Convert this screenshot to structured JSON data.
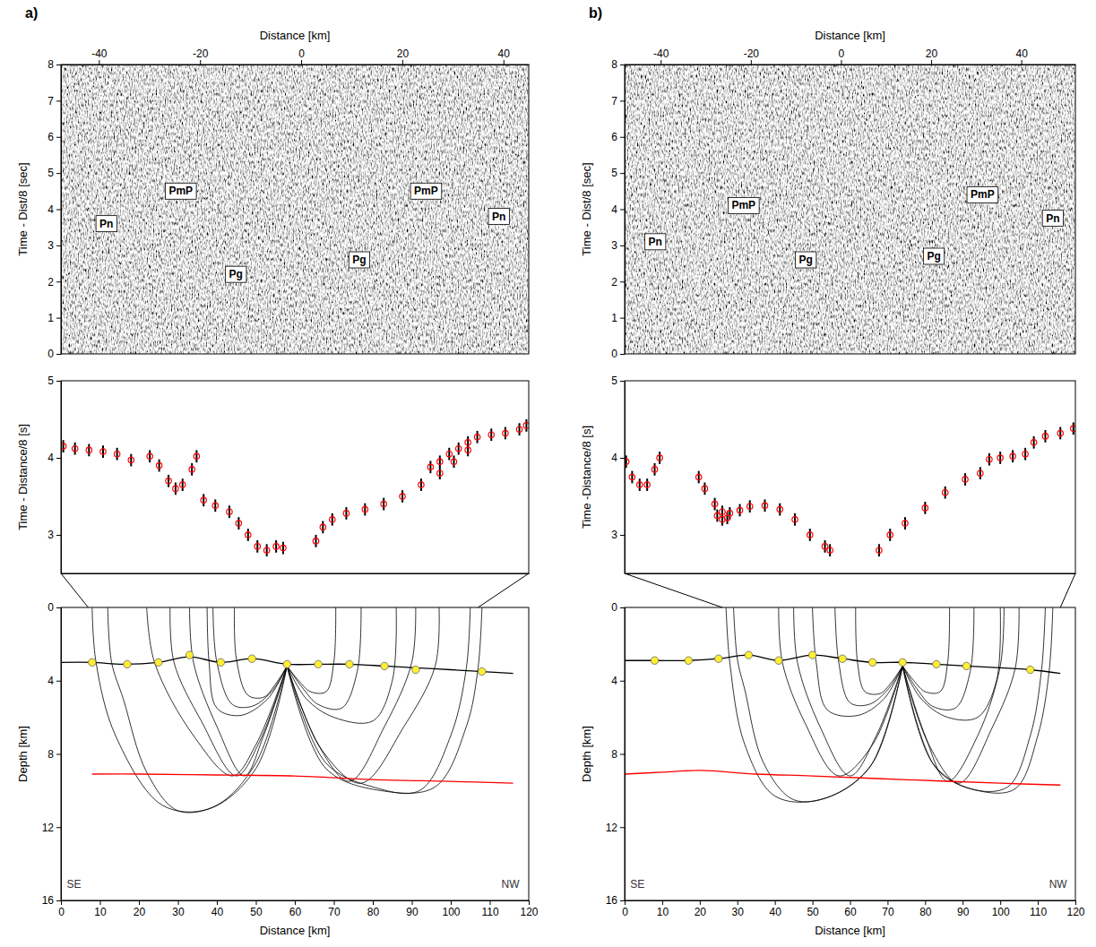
{
  "chart_data": [
    {
      "type": "record_section",
      "title": "a)",
      "xlabel": "Distance [km]",
      "ylabel": "Time - Dist/8 [sec]",
      "xlim": [
        -47.5,
        45
      ],
      "xticks": [
        -40,
        -20,
        0,
        20,
        40
      ],
      "ylim": [
        0,
        8
      ],
      "yticks": [
        0,
        1,
        2,
        3,
        4,
        5,
        6,
        7,
        8
      ],
      "annotations": [
        {
          "text": "Pn",
          "x": -38.5,
          "y": 3.6
        },
        {
          "text": "PmP",
          "x": -23.8,
          "y": 4.5
        },
        {
          "text": "Pg",
          "x": -12.9,
          "y": 2.2
        },
        {
          "text": "Pg",
          "x": 11.5,
          "y": 2.6
        },
        {
          "text": "PmP",
          "x": 24.7,
          "y": 4.5
        },
        {
          "text": "Pn",
          "x": 39.1,
          "y": 3.8
        }
      ]
    },
    {
      "type": "scatter",
      "ylabel": "Time - Distance/8 [s]",
      "xlim": [
        7,
        107
      ],
      "ylim": [
        2.5,
        5
      ],
      "yticks": [
        3,
        4,
        5
      ],
      "tick_labels": "y",
      "color": "#ff0000",
      "marker": "circle",
      "error": 0.08,
      "x": [
        7.5,
        10,
        13,
        16,
        19,
        22,
        26,
        28,
        30,
        31.5,
        33,
        35,
        36,
        37.5,
        40,
        43,
        45,
        47,
        49,
        51,
        53,
        54.5,
        61.5,
        63,
        65,
        68,
        72,
        76,
        80,
        84,
        88,
        91,
        94,
        86,
        88,
        90,
        92,
        94,
        96,
        99,
        102,
        105,
        106.5
      ],
      "values": [
        4.15,
        4.12,
        4.1,
        4.08,
        4.05,
        3.97,
        4.02,
        3.9,
        3.7,
        3.6,
        3.65,
        3.85,
        4.02,
        3.45,
        3.38,
        3.3,
        3.15,
        3,
        2.85,
        2.8,
        2.85,
        2.83,
        2.92,
        3.1,
        3.2,
        3.28,
        3.33,
        3.4,
        3.5,
        3.65,
        3.8,
        3.95,
        4.1,
        3.88,
        3.95,
        4.05,
        4.12,
        4.2,
        4.27,
        4.3,
        4.32,
        4.37,
        4.42
      ]
    },
    {
      "type": "ray_diagram",
      "xlabel": "Distance [km]",
      "ylabel": "Depth [km]",
      "xlim": [
        0,
        120
      ],
      "xticks": [
        0,
        10,
        20,
        30,
        40,
        50,
        60,
        70,
        80,
        90,
        100,
        110,
        120
      ],
      "ylim": [
        16,
        0
      ],
      "yticks": [
        0,
        4,
        8,
        12,
        16
      ],
      "annotations": [
        {
          "text": "SE",
          "x": 1.5,
          "y": 15.3
        },
        {
          "text": "NW",
          "x": 113,
          "y": 15.3
        }
      ],
      "series": [
        {
          "type": "line",
          "color": "#000000",
          "x": [
            58,
            54,
            49,
            44,
            40,
            39
          ],
          "values": [
            3.2,
            4.6,
            5.4,
            5.3,
            3,
            0
          ]
        },
        {
          "type": "line",
          "color": "#000000",
          "x": [
            58,
            55,
            52,
            48,
            45,
            44.5
          ],
          "values": [
            3.2,
            4.2,
            4.9,
            4.8,
            2.8,
            0
          ]
        },
        {
          "type": "line",
          "color": "#000000",
          "x": [
            58,
            53,
            46,
            40,
            38,
            37.5
          ],
          "values": [
            3.2,
            5,
            5.9,
            5.5,
            3,
            0
          ]
        },
        {
          "type": "line",
          "color": "#000000",
          "x": [
            58,
            52,
            47,
            40,
            34,
            33
          ],
          "values": [
            3.2,
            7,
            9.2,
            6.5,
            3,
            0
          ]
        },
        {
          "type": "line",
          "color": "#000000",
          "x": [
            58,
            51,
            45,
            36,
            29,
            28
          ],
          "values": [
            3.2,
            7.3,
            9.2,
            6.2,
            3,
            0
          ]
        },
        {
          "type": "line",
          "color": "#000000",
          "x": [
            58,
            50,
            44,
            34,
            24,
            22
          ],
          "values": [
            3.2,
            7.5,
            9.2,
            7,
            3,
            0
          ]
        },
        {
          "type": "line",
          "color": "#000000",
          "x": [
            58,
            50,
            40,
            30,
            22,
            16,
            13,
            12
          ],
          "values": [
            3.2,
            8.5,
            10.8,
            11.1,
            9,
            5,
            3,
            0
          ]
        },
        {
          "type": "line",
          "color": "#000000",
          "x": [
            58,
            50,
            38,
            26,
            14,
            9,
            8
          ],
          "values": [
            3.2,
            8.8,
            11,
            10.8,
            7,
            3,
            0
          ]
        },
        {
          "type": "line",
          "color": "#000000",
          "x": [
            58,
            61,
            64,
            68,
            70,
            70.5
          ],
          "values": [
            3.2,
            4,
            4.6,
            4.6,
            3,
            0
          ]
        },
        {
          "type": "line",
          "color": "#000000",
          "x": [
            58,
            62,
            66,
            72,
            76,
            77
          ],
          "values": [
            3.2,
            4.4,
            5.3,
            5.5,
            3.5,
            0
          ]
        },
        {
          "type": "line",
          "color": "#000000",
          "x": [
            58,
            63,
            70,
            80,
            85,
            86
          ],
          "values": [
            3.2,
            5,
            6,
            6.2,
            4,
            0
          ]
        },
        {
          "type": "line",
          "color": "#000000",
          "x": [
            58,
            66,
            74,
            83,
            90,
            91
          ],
          "values": [
            3.2,
            7.5,
            9.5,
            6.5,
            3,
            0
          ]
        },
        {
          "type": "line",
          "color": "#000000",
          "x": [
            58,
            67,
            77,
            88,
            96,
            97
          ],
          "values": [
            3.2,
            7.8,
            9.6,
            6.5,
            3.2,
            0
          ]
        },
        {
          "type": "line",
          "color": "#000000",
          "x": [
            58,
            68,
            80,
            92,
            100,
            104,
            105
          ],
          "values": [
            3.2,
            8.5,
            9.8,
            10,
            7,
            3.3,
            0
          ]
        },
        {
          "type": "line",
          "color": "#000000",
          "x": [
            58,
            68,
            82,
            96,
            104,
            107,
            108
          ],
          "values": [
            3.2,
            8.8,
            10,
            9.8,
            6.5,
            3.3,
            0
          ]
        },
        {
          "type": "line",
          "color": "#000000",
          "x": [
            0,
            8,
            16,
            25,
            33,
            41,
            49,
            58,
            66,
            74,
            83,
            91,
            100,
            108,
            116
          ],
          "values": [
            3,
            3,
            3.1,
            3,
            2.7,
            3,
            2.8,
            3.1,
            3.1,
            3.1,
            3.2,
            3.3,
            3.4,
            3.5,
            3.6
          ]
        },
        {
          "type": "line",
          "color": "#ff0000",
          "x": [
            8,
            20,
            40,
            60,
            80,
            100,
            116
          ],
          "values": [
            9.1,
            9.1,
            9.15,
            9.2,
            9.4,
            9.5,
            9.6
          ]
        },
        {
          "type": "scatter",
          "color": "#ffee33",
          "marker": "circle",
          "x": [
            8,
            17,
            25,
            33,
            41,
            49,
            58,
            66,
            74,
            83,
            91,
            108
          ],
          "values": [
            3,
            3.1,
            3,
            2.6,
            3,
            2.8,
            3.1,
            3.1,
            3.1,
            3.2,
            3.4,
            3.5
          ]
        }
      ]
    },
    {
      "type": "record_section",
      "title": "b)",
      "xlabel": "Distance [km]",
      "ylabel": "Time - Dist/8 [sec]",
      "xlim": [
        -48,
        52
      ],
      "xticks": [
        -40,
        -20,
        0,
        20,
        40
      ],
      "ylim": [
        0,
        8
      ],
      "yticks": [
        0,
        1,
        2,
        3,
        4,
        5,
        6,
        7,
        8
      ],
      "annotations": [
        {
          "text": "Pn",
          "x": -41.2,
          "y": 3.1
        },
        {
          "text": "PmP",
          "x": -21.6,
          "y": 4.1
        },
        {
          "text": "Pg",
          "x": -7.8,
          "y": 2.6
        },
        {
          "text": "Pg",
          "x": 20.6,
          "y": 2.7
        },
        {
          "text": "PmP",
          "x": 31.4,
          "y": 4.4
        },
        {
          "text": "Pn",
          "x": 47,
          "y": 3.75
        }
      ]
    },
    {
      "type": "scatter",
      "ylabel": "Time -Distance/8 [s]",
      "xlim": [
        26,
        116
      ],
      "ylim": [
        2.5,
        5
      ],
      "yticks": [
        3,
        4,
        5
      ],
      "tick_labels": "y",
      "color": "#ff0000",
      "marker": "circle",
      "error": 0.08,
      "x": [
        26.3,
        27.5,
        29,
        30.5,
        32,
        33,
        40.8,
        42,
        44,
        45.5,
        47,
        49,
        51,
        54,
        57,
        60,
        63,
        66,
        67,
        44.5,
        45.5,
        46.5,
        76.8,
        79,
        82,
        86,
        90,
        94,
        97,
        98.8,
        101,
        103.5,
        106,
        107.7,
        110,
        113,
        115.6
      ],
      "values": [
        3.95,
        3.75,
        3.65,
        3.65,
        3.85,
        4,
        3.75,
        3.6,
        3.4,
        3.3,
        3.28,
        3.32,
        3.37,
        3.38,
        3.33,
        3.2,
        3,
        2.85,
        2.8,
        3.25,
        3.2,
        3.22,
        2.8,
        3,
        3.15,
        3.35,
        3.55,
        3.72,
        3.8,
        3.98,
        4,
        4.02,
        4.05,
        4.2,
        4.28,
        4.32,
        4.38
      ]
    },
    {
      "type": "ray_diagram",
      "xlabel": "Distance [km]",
      "ylabel": "Depth [km]",
      "xlim": [
        0,
        120
      ],
      "xticks": [
        0,
        10,
        20,
        30,
        40,
        50,
        60,
        70,
        80,
        90,
        100,
        110,
        120
      ],
      "ylim": [
        16,
        0
      ],
      "yticks": [
        0,
        4,
        8,
        12,
        16
      ],
      "annotations": [
        {
          "text": "SE",
          "x": 1.5,
          "y": 15.3
        },
        {
          "text": "NW",
          "x": 113,
          "y": 15.3
        }
      ],
      "series": [
        {
          "type": "line",
          "color": "#000000",
          "x": [
            74,
            70,
            65,
            60,
            57,
            56
          ],
          "values": [
            3.2,
            4.5,
            5.3,
            5.2,
            3,
            0
          ]
        },
        {
          "type": "line",
          "color": "#000000",
          "x": [
            74,
            71,
            68,
            64,
            62,
            61.5
          ],
          "values": [
            3.2,
            4.1,
            4.7,
            4.6,
            3,
            0
          ]
        },
        {
          "type": "line",
          "color": "#000000",
          "x": [
            74,
            69,
            62,
            54,
            51,
            50
          ],
          "values": [
            3.2,
            5,
            5.9,
            5.6,
            3,
            0
          ]
        },
        {
          "type": "line",
          "color": "#000000",
          "x": [
            74,
            67,
            60,
            52,
            46,
            45
          ],
          "values": [
            3.2,
            7,
            9.2,
            6.5,
            3,
            0
          ]
        },
        {
          "type": "line",
          "color": "#000000",
          "x": [
            74,
            66,
            57,
            48,
            42,
            41
          ],
          "values": [
            3.2,
            7.5,
            9.2,
            6.3,
            3,
            0
          ]
        },
        {
          "type": "line",
          "color": "#000000",
          "x": [
            74,
            66,
            55,
            45,
            37,
            32,
            30,
            29
          ],
          "values": [
            3.2,
            8.5,
            10.3,
            10.5,
            8.5,
            4.5,
            2.8,
            0
          ]
        },
        {
          "type": "line",
          "color": "#000000",
          "x": [
            74,
            65,
            52,
            40,
            32,
            28,
            27
          ],
          "values": [
            3.2,
            8.8,
            10.5,
            10.3,
            7.5,
            3,
            0
          ]
        },
        {
          "type": "line",
          "color": "#000000",
          "x": [
            74,
            77,
            80,
            84,
            86,
            86.5
          ],
          "values": [
            3.2,
            4,
            4.6,
            4.6,
            3,
            0
          ]
        },
        {
          "type": "line",
          "color": "#000000",
          "x": [
            74,
            78,
            82,
            88,
            92,
            93
          ],
          "values": [
            3.2,
            4.5,
            5.4,
            5.5,
            3.5,
            0
          ]
        },
        {
          "type": "line",
          "color": "#000000",
          "x": [
            74,
            79,
            86,
            94,
            99,
            100
          ],
          "values": [
            3.2,
            5,
            6,
            6,
            4,
            0
          ]
        },
        {
          "type": "line",
          "color": "#000000",
          "x": [
            74,
            80,
            86,
            94,
            100,
            101
          ],
          "values": [
            3.2,
            7,
            9.5,
            7,
            3.2,
            0
          ]
        },
        {
          "type": "line",
          "color": "#000000",
          "x": [
            74,
            81,
            89,
            98,
            104,
            105
          ],
          "values": [
            3.2,
            7.5,
            9.6,
            6.5,
            3.3,
            0
          ]
        },
        {
          "type": "line",
          "color": "#000000",
          "x": [
            74,
            82,
            92,
            102,
            108,
            111,
            112
          ],
          "values": [
            3.2,
            8.5,
            9.9,
            9.8,
            7,
            3.4,
            0
          ]
        },
        {
          "type": "line",
          "color": "#000000",
          "x": [
            74,
            83,
            94,
            104,
            110,
            113,
            114
          ],
          "values": [
            3.2,
            8.8,
            10,
            9.9,
            7,
            3.5,
            0
          ]
        },
        {
          "type": "line",
          "color": "#000000",
          "x": [
            0,
            8,
            17,
            25,
            33,
            41,
            50,
            58,
            66,
            74,
            83,
            91,
            100,
            108,
            116
          ],
          "values": [
            2.9,
            2.9,
            2.9,
            2.8,
            2.6,
            2.9,
            2.6,
            2.8,
            3,
            3,
            3.1,
            3.2,
            3.3,
            3.4,
            3.6
          ]
        },
        {
          "type": "line",
          "color": "#ff0000",
          "x": [
            0,
            10,
            20,
            35,
            50,
            74,
            100,
            116
          ],
          "values": [
            9.1,
            9,
            8.9,
            9.1,
            9.2,
            9.4,
            9.6,
            9.7
          ]
        },
        {
          "type": "scatter",
          "color": "#ffee33",
          "marker": "circle",
          "x": [
            8,
            17,
            25,
            33,
            41,
            50,
            58,
            66,
            74,
            83,
            91,
            108
          ],
          "values": [
            2.9,
            2.9,
            2.8,
            2.6,
            2.9,
            2.6,
            2.8,
            3,
            3,
            3.1,
            3.2,
            3.4
          ]
        }
      ]
    }
  ]
}
